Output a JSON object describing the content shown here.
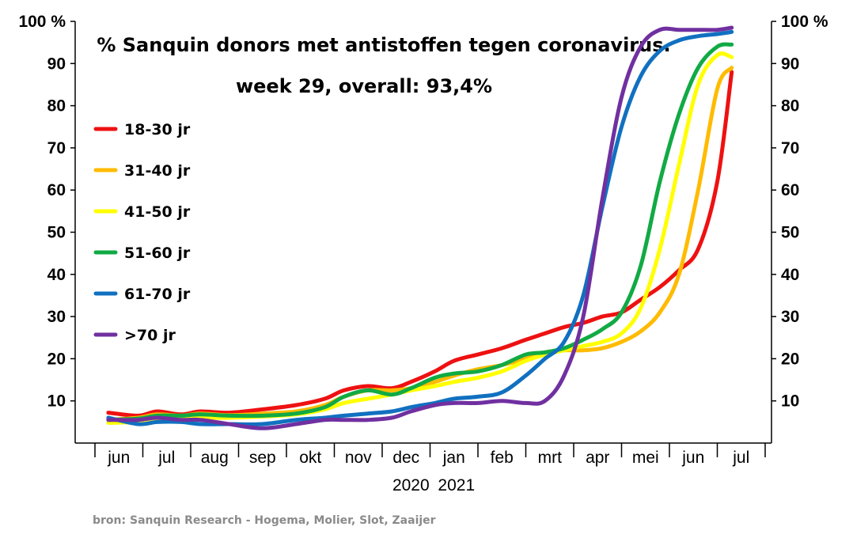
{
  "chart_data": {
    "type": "line",
    "title": "% Sanquin donors met antistoffen tegen coronavirus.",
    "subtitle": "week 29, overall: 93,4%",
    "source": "bron: Sanquin Research - Hogema, Molier, Slot, Zaaijer",
    "ylim": [
      0,
      100
    ],
    "y_ticks": [
      "10",
      "20",
      "30",
      "40",
      "50",
      "60",
      "70",
      "80",
      "90",
      "100 %"
    ],
    "y_tick_values": [
      10,
      20,
      30,
      40,
      50,
      60,
      70,
      80,
      90,
      100
    ],
    "x_months": [
      "jun",
      "jul",
      "aug",
      "sep",
      "okt",
      "nov",
      "dec",
      "jan",
      "feb",
      "mrt",
      "apr",
      "mei",
      "jun",
      "jul"
    ],
    "x_years": [
      "2020",
      "2021"
    ],
    "x_unit": "month index (0 = start jun 2020)",
    "legend_position": "left",
    "colors": {
      "18-30 jr": "#ee1111",
      "31-40 jr": "#ffbb00",
      "41-50 jr": "#ffff00",
      "51-60 jr": "#11aa44",
      "61-70 jr": "#1170c0",
      ">70 jr": "#7030a0"
    },
    "series": [
      {
        "name": "18-30 jr",
        "x": [
          0.28,
          0.9,
          1.3,
          1.8,
          2.2,
          2.8,
          3.5,
          4.2,
          4.8,
          5.2,
          5.7,
          6.2,
          6.6,
          7.1,
          7.5,
          8.0,
          8.5,
          9.0,
          9.4,
          9.8,
          10.2,
          10.6,
          11.0,
          11.4,
          11.8,
          12.2,
          12.6,
          13.0,
          13.3
        ],
        "y": [
          7.2,
          6.5,
          7.5,
          6.8,
          7.5,
          7.2,
          8.0,
          9.0,
          10.5,
          12.5,
          13.5,
          13.0,
          14.5,
          17.0,
          19.5,
          21.0,
          22.5,
          24.5,
          26.0,
          27.5,
          28.5,
          30.0,
          31.0,
          34.0,
          37.0,
          41.0,
          46.0,
          62.0,
          88.0
        ]
      },
      {
        "name": "31-40 jr",
        "x": [
          0.28,
          0.9,
          1.3,
          1.8,
          2.2,
          2.8,
          3.5,
          4.2,
          4.8,
          5.2,
          5.7,
          6.2,
          6.6,
          7.1,
          7.5,
          8.0,
          8.5,
          9.0,
          9.4,
          9.8,
          10.2,
          10.6,
          11.0,
          11.4,
          11.8,
          12.2,
          12.6,
          13.0,
          13.3
        ],
        "y": [
          5.5,
          6.0,
          6.8,
          6.5,
          7.0,
          6.6,
          7.0,
          7.5,
          9.0,
          11.0,
          12.5,
          12.5,
          13.0,
          14.5,
          16.0,
          17.5,
          18.5,
          20.0,
          21.5,
          22.0,
          22.0,
          22.5,
          24.0,
          26.5,
          31.0,
          40.0,
          60.0,
          84.0,
          89.0
        ]
      },
      {
        "name": "41-50 jr",
        "x": [
          0.28,
          0.9,
          1.3,
          1.8,
          2.2,
          2.8,
          3.5,
          4.2,
          4.8,
          5.2,
          5.7,
          6.2,
          6.6,
          7.1,
          7.5,
          8.0,
          8.5,
          9.0,
          9.4,
          9.8,
          10.2,
          10.6,
          11.0,
          11.4,
          11.8,
          12.2,
          12.6,
          13.0,
          13.3
        ],
        "y": [
          4.8,
          5.0,
          5.5,
          5.8,
          6.0,
          6.0,
          6.3,
          6.8,
          8.0,
          9.5,
          10.5,
          11.5,
          12.5,
          13.5,
          14.5,
          15.5,
          17.0,
          19.5,
          21.0,
          22.0,
          23.0,
          24.0,
          26.0,
          32.0,
          46.0,
          66.0,
          85.0,
          92.0,
          91.5
        ]
      },
      {
        "name": "51-60 jr",
        "x": [
          0.28,
          0.9,
          1.3,
          1.8,
          2.2,
          2.8,
          3.5,
          4.2,
          4.8,
          5.2,
          5.7,
          6.2,
          6.6,
          7.1,
          7.5,
          8.0,
          8.5,
          9.0,
          9.4,
          9.8,
          10.2,
          10.6,
          11.0,
          11.4,
          11.8,
          12.2,
          12.6,
          13.0,
          13.3
        ],
        "y": [
          5.5,
          5.8,
          6.5,
          6.5,
          6.8,
          6.5,
          6.5,
          7.0,
          8.5,
          11.0,
          12.5,
          11.5,
          13.0,
          15.5,
          16.5,
          17.0,
          18.5,
          21.0,
          21.5,
          22.5,
          24.5,
          27.0,
          31.0,
          42.0,
          62.0,
          78.0,
          89.0,
          94.0,
          94.5
        ]
      },
      {
        "name": "61-70 jr",
        "x": [
          0.28,
          0.9,
          1.3,
          1.8,
          2.2,
          2.8,
          3.5,
          4.2,
          4.8,
          5.2,
          5.7,
          6.2,
          6.6,
          7.1,
          7.5,
          8.0,
          8.5,
          9.0,
          9.4,
          9.8,
          10.2,
          10.6,
          11.0,
          11.4,
          11.8,
          12.2,
          12.6,
          13.0,
          13.3
        ],
        "y": [
          6.0,
          4.5,
          5.0,
          5.0,
          4.5,
          4.5,
          4.5,
          5.5,
          6.0,
          6.5,
          7.0,
          7.5,
          8.5,
          9.5,
          10.5,
          11.0,
          12.0,
          16.0,
          20.0,
          24.0,
          35.0,
          56.0,
          75.0,
          87.0,
          93.0,
          95.5,
          96.5,
          97.0,
          97.5
        ]
      },
      {
        "name": ">70 jr",
        "x": [
          0.28,
          0.9,
          1.3,
          1.8,
          2.2,
          2.8,
          3.5,
          4.2,
          4.8,
          5.2,
          5.7,
          6.2,
          6.6,
          7.1,
          7.5,
          8.0,
          8.5,
          9.0,
          9.4,
          9.8,
          10.2,
          10.6,
          11.0,
          11.4,
          11.8,
          12.2,
          12.6,
          13.0,
          13.3
        ],
        "y": [
          5.5,
          5.5,
          6.0,
          5.5,
          5.5,
          4.5,
          3.5,
          4.5,
          5.5,
          5.5,
          5.5,
          6.0,
          7.5,
          9.0,
          9.5,
          9.5,
          10.0,
          9.5,
          10.0,
          16.0,
          30.0,
          58.0,
          82.0,
          94.0,
          98.0,
          98.0,
          98.0,
          98.0,
          98.5
        ]
      }
    ]
  }
}
